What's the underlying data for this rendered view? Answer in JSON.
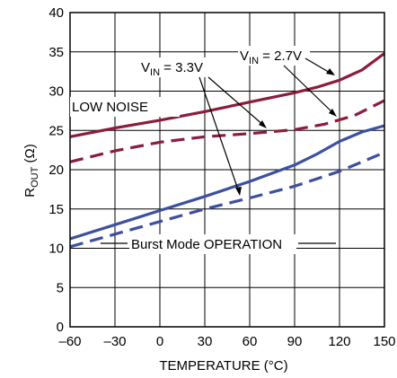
{
  "chart_data": {
    "type": "line",
    "xlabel": "TEMPERATURE (°C)",
    "ylabel": {
      "main": "R",
      "sub": "OUT",
      "rest": " (Ω)"
    },
    "xlim": [
      -60,
      150
    ],
    "ylim": [
      0,
      40
    ],
    "x_ticks": [
      -60,
      -30,
      0,
      30,
      60,
      90,
      120,
      150
    ],
    "x_tick_labels": [
      "–60",
      "–30",
      "0",
      "30",
      "60",
      "90",
      "120",
      "150"
    ],
    "y_ticks": [
      0,
      5,
      10,
      15,
      20,
      25,
      30,
      35,
      40
    ],
    "grid": true,
    "series": [
      {
        "color": "#8c1c3c",
        "dash": false,
        "x": [
          -60,
          -30,
          0,
          30,
          60,
          90,
          105,
          120,
          135,
          150
        ],
        "y": [
          24.2,
          25.3,
          26.3,
          27.4,
          28.6,
          29.8,
          30.5,
          31.4,
          32.7,
          34.8
        ]
      },
      {
        "color": "#8c1c3c",
        "dash": true,
        "x": [
          -60,
          -30,
          0,
          30,
          60,
          90,
          110,
          130,
          150
        ],
        "y": [
          21.0,
          22.4,
          23.5,
          24.2,
          24.6,
          25.1,
          25.8,
          26.9,
          28.8
        ]
      },
      {
        "color": "#3c50a0",
        "dash": false,
        "x": [
          -60,
          -30,
          0,
          30,
          60,
          90,
          105,
          120,
          135,
          150
        ],
        "y": [
          11.2,
          13.0,
          14.8,
          16.6,
          18.5,
          20.6,
          22.0,
          23.6,
          24.8,
          25.6
        ]
      },
      {
        "color": "#3c50a0",
        "dash": true,
        "x": [
          -60,
          -30,
          0,
          30,
          60,
          90,
          120,
          150
        ],
        "y": [
          10.2,
          11.8,
          13.4,
          15.0,
          16.4,
          17.9,
          19.8,
          22.2
        ]
      }
    ],
    "annotations": {
      "vin27": {
        "main": "V",
        "sub": "IN",
        "rest": " = 2.7V"
      },
      "vin33": {
        "main": "V",
        "sub": "IN",
        "rest": " = 3.3V"
      },
      "low_noise": "LOW NOISE",
      "burst_mode": "Burst Mode OPERATION"
    }
  }
}
